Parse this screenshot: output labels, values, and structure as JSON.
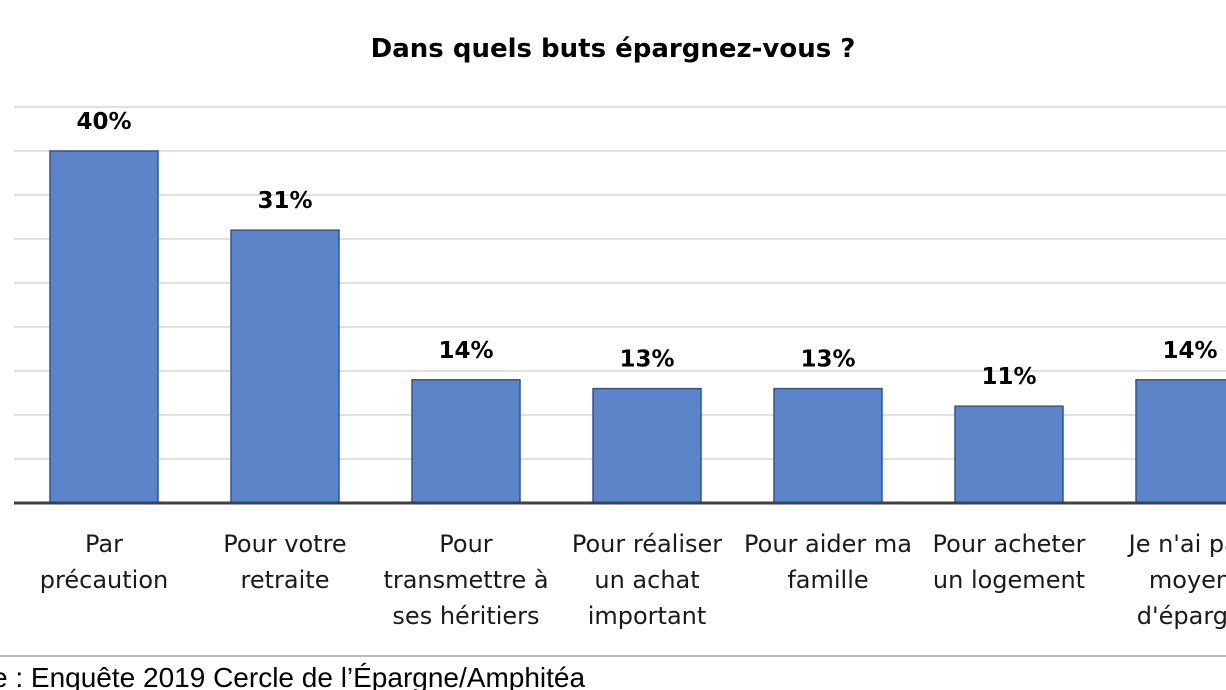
{
  "chart_data": {
    "type": "bar",
    "title": "Dans quels buts épargnez-vous ?",
    "categories": [
      [
        "Par",
        "précaution"
      ],
      [
        "Pour votre",
        "retraite"
      ],
      [
        "Pour",
        "transmettre à",
        "ses héritiers"
      ],
      [
        "Pour réaliser",
        "un achat",
        "important"
      ],
      [
        "Pour aider ma",
        "famille"
      ],
      [
        "Pour acheter",
        "un logement"
      ],
      [
        "Je n'ai pas",
        "moyen",
        "d'épargn"
      ]
    ],
    "values": [
      40,
      31,
      14,
      13,
      13,
      11,
      14
    ],
    "value_labels": [
      "40%",
      "31%",
      "14%",
      "13%",
      "13%",
      "11%",
      "14%"
    ],
    "xlabel": "",
    "ylabel": "",
    "ylim": [
      0,
      45
    ],
    "grid": true,
    "legend": "none",
    "bar_color": "#5b84c9",
    "bar_edge_color": "#2f5597"
  },
  "source": {
    "text": "e : Enquête 2019 Cercle de l’Épargne/Amphitéa"
  }
}
